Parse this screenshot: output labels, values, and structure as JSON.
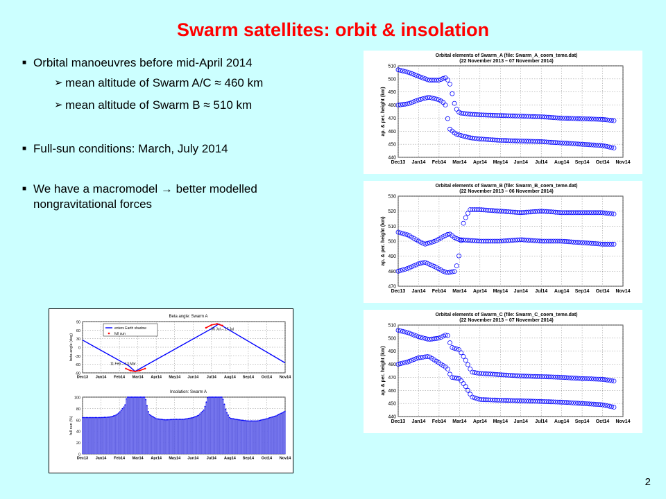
{
  "slide": {
    "title": "Swarm satellites: orbit & insolation",
    "page_number": "2"
  },
  "bullets": [
    {
      "text": "Orbital manoeuvres before mid-April 2014",
      "sub": [
        "mean altitude of Swarm A/C ≈ 460 km",
        "mean altitude of Swarm B ≈ 510 km"
      ]
    },
    {
      "text": "Full-sun conditions: March, July 2014",
      "sub": []
    },
    {
      "text": "We have a macromodel → better modelled nongravitational forces",
      "sub": []
    }
  ],
  "colors": {
    "title": "#ff0000",
    "background": "#ccffff",
    "series": "#0000ff",
    "full_sun": "#ff0000"
  },
  "chart_data": [
    {
      "type": "scatter",
      "title": "Orbital elements of Swarm_A  (file: Swarm_A_coem_teme.dat)",
      "subtitle": "(22 November 2013 – 07 November 2014)",
      "ylabel": "ap. & per. height (km)",
      "xlabel": "",
      "ylim": [
        440,
        510
      ],
      "yticks": [
        440,
        450,
        460,
        470,
        480,
        490,
        500,
        510
      ],
      "categories": [
        "Dec13",
        "Jan14",
        "Feb14",
        "Mar14",
        "Apr14",
        "May14",
        "Jun14",
        "Jul14",
        "Aug14",
        "Sep14",
        "Oct14",
        "Nov14"
      ],
      "grid": true,
      "series": [
        {
          "points": [
            [
              0,
              507
            ],
            [
              0.5,
              505
            ],
            [
              1,
              502
            ],
            [
              1.5,
              499
            ],
            [
              2,
              499
            ],
            [
              2.3,
              501
            ],
            [
              2.5,
              498
            ],
            [
              2.8,
              478
            ],
            [
              3,
              474
            ],
            [
              3.5,
              473
            ],
            [
              4,
              472.5
            ],
            [
              5,
              472
            ],
            [
              6,
              471.5
            ],
            [
              7,
              471
            ],
            [
              8,
              470
            ],
            [
              9,
              469.5
            ],
            [
              10,
              469
            ],
            [
              10.6,
              468
            ]
          ]
        },
        {
          "points": [
            [
              0,
              480
            ],
            [
              0.5,
              481
            ],
            [
              1,
              484
            ],
            [
              1.5,
              486
            ],
            [
              2,
              484
            ],
            [
              2.3,
              481
            ],
            [
              2.5,
              462
            ],
            [
              2.8,
              458
            ],
            [
              3,
              457
            ],
            [
              3.5,
              455
            ],
            [
              4,
              454
            ],
            [
              5,
              453
            ],
            [
              6,
              452.5
            ],
            [
              7,
              452
            ],
            [
              8,
              451
            ],
            [
              9,
              450
            ],
            [
              10,
              449
            ],
            [
              10.6,
              447
            ]
          ]
        }
      ]
    },
    {
      "type": "scatter",
      "title": "Orbital elements of Swarm_B  (file: Swarm_B_coem_teme.dat)",
      "subtitle": "(22 November 2013 – 06 November 2014)",
      "ylabel": "ap. & per. height (km)",
      "xlabel": "",
      "ylim": [
        470,
        530
      ],
      "yticks": [
        470,
        480,
        490,
        500,
        510,
        520,
        530
      ],
      "categories": [
        "Dec13",
        "Jan14",
        "Feb14",
        "Mar14",
        "Apr14",
        "May14",
        "Jun14",
        "Jul14",
        "Aug14",
        "Sep14",
        "Oct14",
        "Nov14"
      ],
      "grid": true,
      "series": [
        {
          "points": [
            [
              0,
              506
            ],
            [
              0.5,
              504
            ],
            [
              1,
              500
            ],
            [
              1.3,
              498
            ],
            [
              1.8,
              500
            ],
            [
              2.2,
              503
            ],
            [
              2.5,
              505
            ],
            [
              2.8,
              502
            ],
            [
              3,
              501
            ],
            [
              4,
              500
            ],
            [
              5,
              500
            ],
            [
              6,
              501
            ],
            [
              7,
              500
            ],
            [
              8,
              500
            ],
            [
              9,
              499
            ],
            [
              10,
              498
            ],
            [
              10.6,
              498
            ]
          ]
        },
        {
          "points": [
            [
              0,
              480
            ],
            [
              0.5,
              482
            ],
            [
              1,
              485
            ],
            [
              1.3,
              486
            ],
            [
              1.8,
              483
            ],
            [
              2.2,
              480
            ],
            [
              2.4,
              479
            ],
            [
              2.8,
              480
            ],
            [
              3,
              492
            ],
            [
              3.2,
              513
            ],
            [
              3.5,
              521
            ],
            [
              4,
              521
            ],
            [
              5,
              520
            ],
            [
              6,
              519
            ],
            [
              7,
              520
            ],
            [
              8,
              519
            ],
            [
              9,
              519
            ],
            [
              10,
              519
            ],
            [
              10.6,
              518
            ]
          ]
        }
      ]
    },
    {
      "type": "scatter",
      "title": "Orbital elements of Swarm_C  (file: Swarm_C_coem_teme.dat)",
      "subtitle": "(22 November 2013 – 07 November 2014)",
      "ylabel": "ap. & per. height (km)",
      "xlabel": "",
      "ylim": [
        440,
        510
      ],
      "yticks": [
        440,
        450,
        460,
        470,
        480,
        490,
        500,
        510
      ],
      "categories": [
        "Dec13",
        "Jan14",
        "Feb14",
        "Mar14",
        "Apr14",
        "May14",
        "Jun14",
        "Jul14",
        "Aug14",
        "Sep14",
        "Oct14",
        "Nov14"
      ],
      "grid": true,
      "series": [
        {
          "points": [
            [
              0,
              506
            ],
            [
              0.5,
              504
            ],
            [
              1,
              501
            ],
            [
              1.5,
              499
            ],
            [
              2,
              500
            ],
            [
              2.4,
              503
            ],
            [
              2.6,
              493
            ],
            [
              3,
              491
            ],
            [
              3.3,
              483
            ],
            [
              3.6,
              474
            ],
            [
              4,
              473
            ],
            [
              5,
              472
            ],
            [
              6,
              471
            ],
            [
              7,
              470.5
            ],
            [
              8,
              470
            ],
            [
              9,
              469
            ],
            [
              10,
              468.5
            ],
            [
              10.6,
              467
            ]
          ]
        },
        {
          "points": [
            [
              0,
              480
            ],
            [
              0.5,
              482
            ],
            [
              1,
              485
            ],
            [
              1.5,
              486
            ],
            [
              2,
              481
            ],
            [
              2.4,
              477
            ],
            [
              2.6,
              470
            ],
            [
              3,
              469
            ],
            [
              3.3,
              463
            ],
            [
              3.6,
              455
            ],
            [
              4,
              453
            ],
            [
              5,
              452.5
            ],
            [
              6,
              452
            ],
            [
              7,
              451.5
            ],
            [
              8,
              451
            ],
            [
              9,
              450
            ],
            [
              10,
              449
            ],
            [
              10.6,
              447
            ]
          ]
        }
      ]
    },
    {
      "type": "line",
      "title": "Beta angle: Swarm A",
      "ylabel": "beta angle (deg)",
      "xlabel": "",
      "ylim": [
        -90,
        90
      ],
      "yticks": [
        -90,
        -60,
        -30,
        0,
        30,
        60,
        90
      ],
      "categories": [
        "Dec13",
        "Jan14",
        "Feb14",
        "Mar14",
        "Apr14",
        "May14",
        "Jun14",
        "Jul14",
        "Aug14",
        "Sep14",
        "Oct14",
        "Nov14"
      ],
      "grid": true,
      "legend": "top-left",
      "series": [
        {
          "name": "enters Earth shadow",
          "x": [
            0,
            2.5,
            2.85,
            7.0,
            7.4,
            11.0
          ],
          "y": [
            25,
            -65,
            -85,
            65,
            82,
            -55
          ]
        },
        {
          "name": "full sun",
          "x": [
            2.35,
            2.6,
            2.85,
            3.1,
            3.4
          ],
          "y": [
            -75,
            -82,
            -85,
            -82,
            -75
          ]
        },
        {
          "name": "full sun",
          "x": [
            6.7,
            7.0,
            7.3,
            7.6
          ],
          "y": [
            68,
            78,
            82,
            76
          ]
        }
      ],
      "annotations": [
        "11 Feb -- 13 Mar",
        "06 Jul -- 17 Jul"
      ]
    },
    {
      "type": "bar",
      "title": "Insolation: Swarm A",
      "ylabel": "full sun (%)",
      "xlabel": "",
      "ylim": [
        0,
        100
      ],
      "yticks": [
        0,
        20,
        40,
        60,
        80,
        100
      ],
      "categories": [
        "Dec13",
        "Jan14",
        "Feb14",
        "Mar14",
        "Apr14",
        "May14",
        "Jun14",
        "Jul14",
        "Aug14",
        "Sep14",
        "Oct14",
        "Nov14"
      ],
      "grid": true,
      "x": [
        0,
        0.5,
        1,
        1.5,
        1.8,
        2.0,
        2.3,
        2.4,
        2.6,
        2.8,
        3.0,
        3.2,
        3.4,
        3.6,
        4,
        4.5,
        5,
        5.5,
        6,
        6.3,
        6.6,
        6.8,
        7.0,
        7.3,
        7.6,
        7.8,
        8,
        8.5,
        9,
        9.5,
        10,
        10.5,
        11
      ],
      "values": [
        64,
        64,
        64,
        65,
        68,
        73,
        85,
        100,
        100,
        100,
        100,
        100,
        100,
        70,
        62,
        60,
        61,
        61,
        64,
        68,
        78,
        100,
        100,
        100,
        100,
        75,
        63,
        60,
        58,
        58,
        62,
        67,
        75
      ]
    }
  ]
}
